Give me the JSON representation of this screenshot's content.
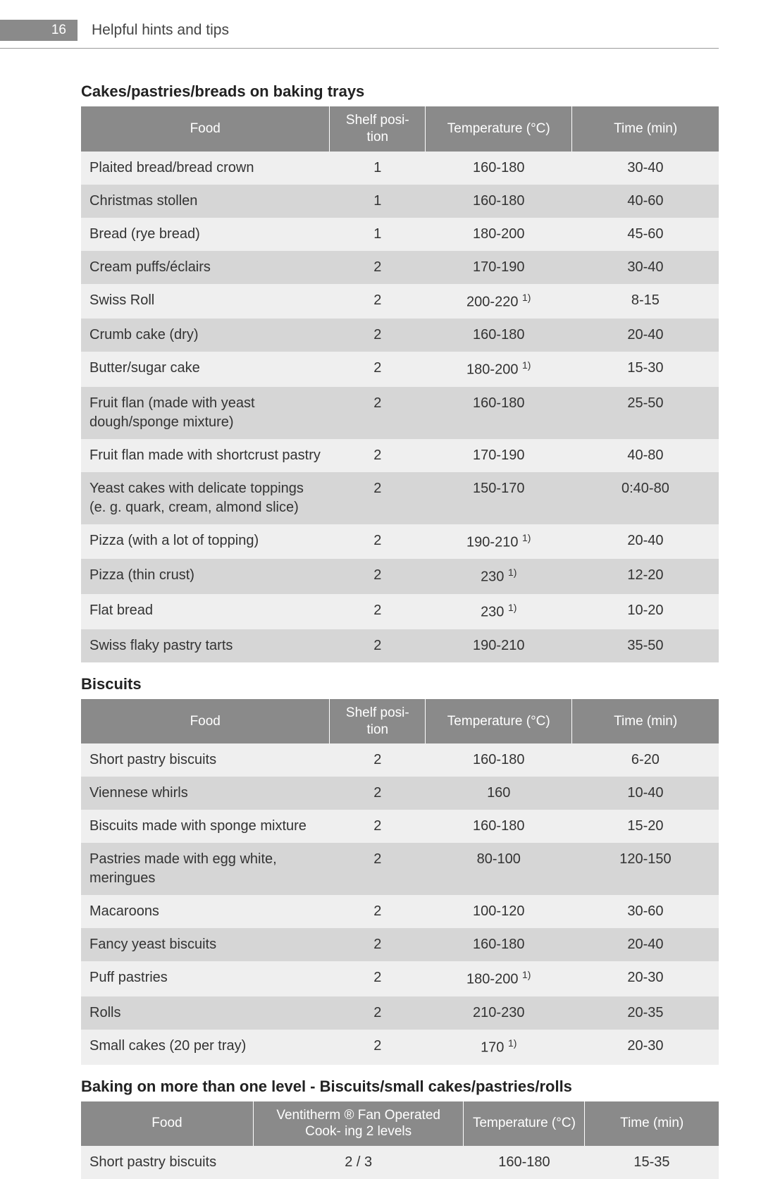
{
  "header": {
    "page_number": "16",
    "section": "Helpful hints and tips"
  },
  "table1": {
    "title": "Cakes/pastries/breads on baking trays",
    "columns": [
      "Food",
      "Shelf posi-\ntion",
      "Temperature (°C)",
      "Time (min)"
    ],
    "rows": [
      {
        "food": "Plaited bread/bread crown",
        "shelf": "1",
        "temp": "160-180",
        "sup": "",
        "time": "30-40"
      },
      {
        "food": "Christmas stollen",
        "shelf": "1",
        "temp": "160-180",
        "sup": "",
        "time": "40-60"
      },
      {
        "food": "Bread (rye bread)",
        "shelf": "1",
        "temp": "180-200",
        "sup": "",
        "time": "45-60"
      },
      {
        "food": "Cream puffs/éclairs",
        "shelf": "2",
        "temp": "170-190",
        "sup": "",
        "time": "30-40"
      },
      {
        "food": "Swiss Roll",
        "shelf": "2",
        "temp": "200-220 ",
        "sup": "1)",
        "time": "8-15"
      },
      {
        "food": "Crumb cake (dry)",
        "shelf": "2",
        "temp": "160-180",
        "sup": "",
        "time": "20-40"
      },
      {
        "food": "Butter/sugar cake",
        "shelf": "2",
        "temp": "180-200 ",
        "sup": "1)",
        "time": "15-30"
      },
      {
        "food": "Fruit flan (made with yeast dough/sponge mixture)",
        "shelf": "2",
        "temp": "160-180",
        "sup": "",
        "time": "25-50"
      },
      {
        "food": "Fruit flan made with shortcrust pastry",
        "shelf": "2",
        "temp": "170-190",
        "sup": "",
        "time": "40-80"
      },
      {
        "food": "Yeast cakes with delicate toppings (e. g. quark, cream, almond slice)",
        "shelf": "2",
        "temp": "150-170",
        "sup": "",
        "time": "0:40-80"
      },
      {
        "food": "Pizza (with a lot of topping)",
        "shelf": "2",
        "temp": "190-210 ",
        "sup": "1)",
        "time": "20-40"
      },
      {
        "food": "Pizza (thin crust)",
        "shelf": "2",
        "temp": "230 ",
        "sup": "1)",
        "time": "12-20"
      },
      {
        "food": "Flat bread",
        "shelf": "2",
        "temp": "230 ",
        "sup": "1)",
        "time": "10-20"
      },
      {
        "food": "Swiss flaky pastry tarts",
        "shelf": "2",
        "temp": "190-210",
        "sup": "",
        "time": "35-50"
      }
    ]
  },
  "table2": {
    "title": "Biscuits",
    "columns": [
      "Food",
      "Shelf posi-\ntion",
      "Temperature (°C)",
      "Time (min)"
    ],
    "rows": [
      {
        "food": "Short pastry biscuits",
        "shelf": "2",
        "temp": "160-180",
        "sup": "",
        "time": "6-20"
      },
      {
        "food": "Viennese whirls",
        "shelf": "2",
        "temp": "160",
        "sup": "",
        "time": "10-40"
      },
      {
        "food": "Biscuits made with sponge mixture",
        "shelf": "2",
        "temp": "160-180",
        "sup": "",
        "time": "15-20"
      },
      {
        "food": "Pastries made with egg white, meringues",
        "shelf": "2",
        "temp": "80-100",
        "sup": "",
        "time": "120-150"
      },
      {
        "food": "Macaroons",
        "shelf": "2",
        "temp": "100-120",
        "sup": "",
        "time": "30-60"
      },
      {
        "food": "Fancy yeast biscuits",
        "shelf": "2",
        "temp": "160-180",
        "sup": "",
        "time": "20-40"
      },
      {
        "food": "Puff pastries",
        "shelf": "2",
        "temp": "180-200 ",
        "sup": "1)",
        "time": "20-30"
      },
      {
        "food": "Rolls",
        "shelf": "2",
        "temp": "210-230",
        "sup": "",
        "time": "20-35"
      },
      {
        "food": "Small cakes (20 per tray)",
        "shelf": "2",
        "temp": "170 ",
        "sup": "1)",
        "time": "20-30"
      }
    ]
  },
  "table3": {
    "title": "Baking on more than one level - Biscuits/small cakes/pastries/rolls",
    "columns": [
      "Food",
      "Ventitherm ® Fan Operated Cook-\ning\n2 levels",
      "Temperature\n(°C)",
      "Time (min)"
    ],
    "rows": [
      {
        "food": "Short pastry biscuits",
        "venti": "2 / 3",
        "temp": "160-180",
        "time": "15-35"
      }
    ]
  }
}
